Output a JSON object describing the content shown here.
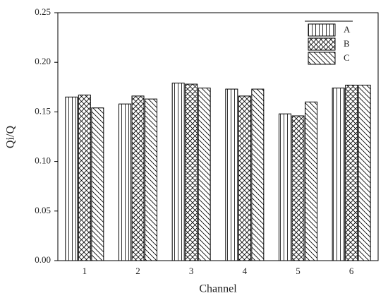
{
  "chart_data": {
    "type": "bar",
    "x_label": "Channel",
    "y_label": "Qi/Q",
    "categories": [
      "1",
      "2",
      "3",
      "4",
      "5",
      "6"
    ],
    "series": [
      {
        "name": "A",
        "color": "#000000",
        "pattern": "vertical",
        "values": [
          0.165,
          0.158,
          0.179,
          0.173,
          0.148,
          0.174
        ]
      },
      {
        "name": "B",
        "color": "#000000",
        "pattern": "crosshatch",
        "values": [
          0.167,
          0.166,
          0.178,
          0.166,
          0.146,
          0.177
        ]
      },
      {
        "name": "C",
        "color": "#000000",
        "pattern": "diagonal",
        "values": [
          0.154,
          0.163,
          0.174,
          0.173,
          0.16,
          0.177
        ]
      }
    ],
    "ylim": [
      0,
      0.25
    ],
    "yticks": [
      {
        "value": 0,
        "label": "0.00"
      },
      {
        "value": 0.05,
        "label": "0.05"
      },
      {
        "value": 0.1,
        "label": "0.10"
      },
      {
        "value": 0.15,
        "label": "0.15"
      },
      {
        "value": 0.2,
        "label": "0.20"
      },
      {
        "value": 0.25,
        "label": "0.25"
      }
    ],
    "legend": "upper right"
  }
}
